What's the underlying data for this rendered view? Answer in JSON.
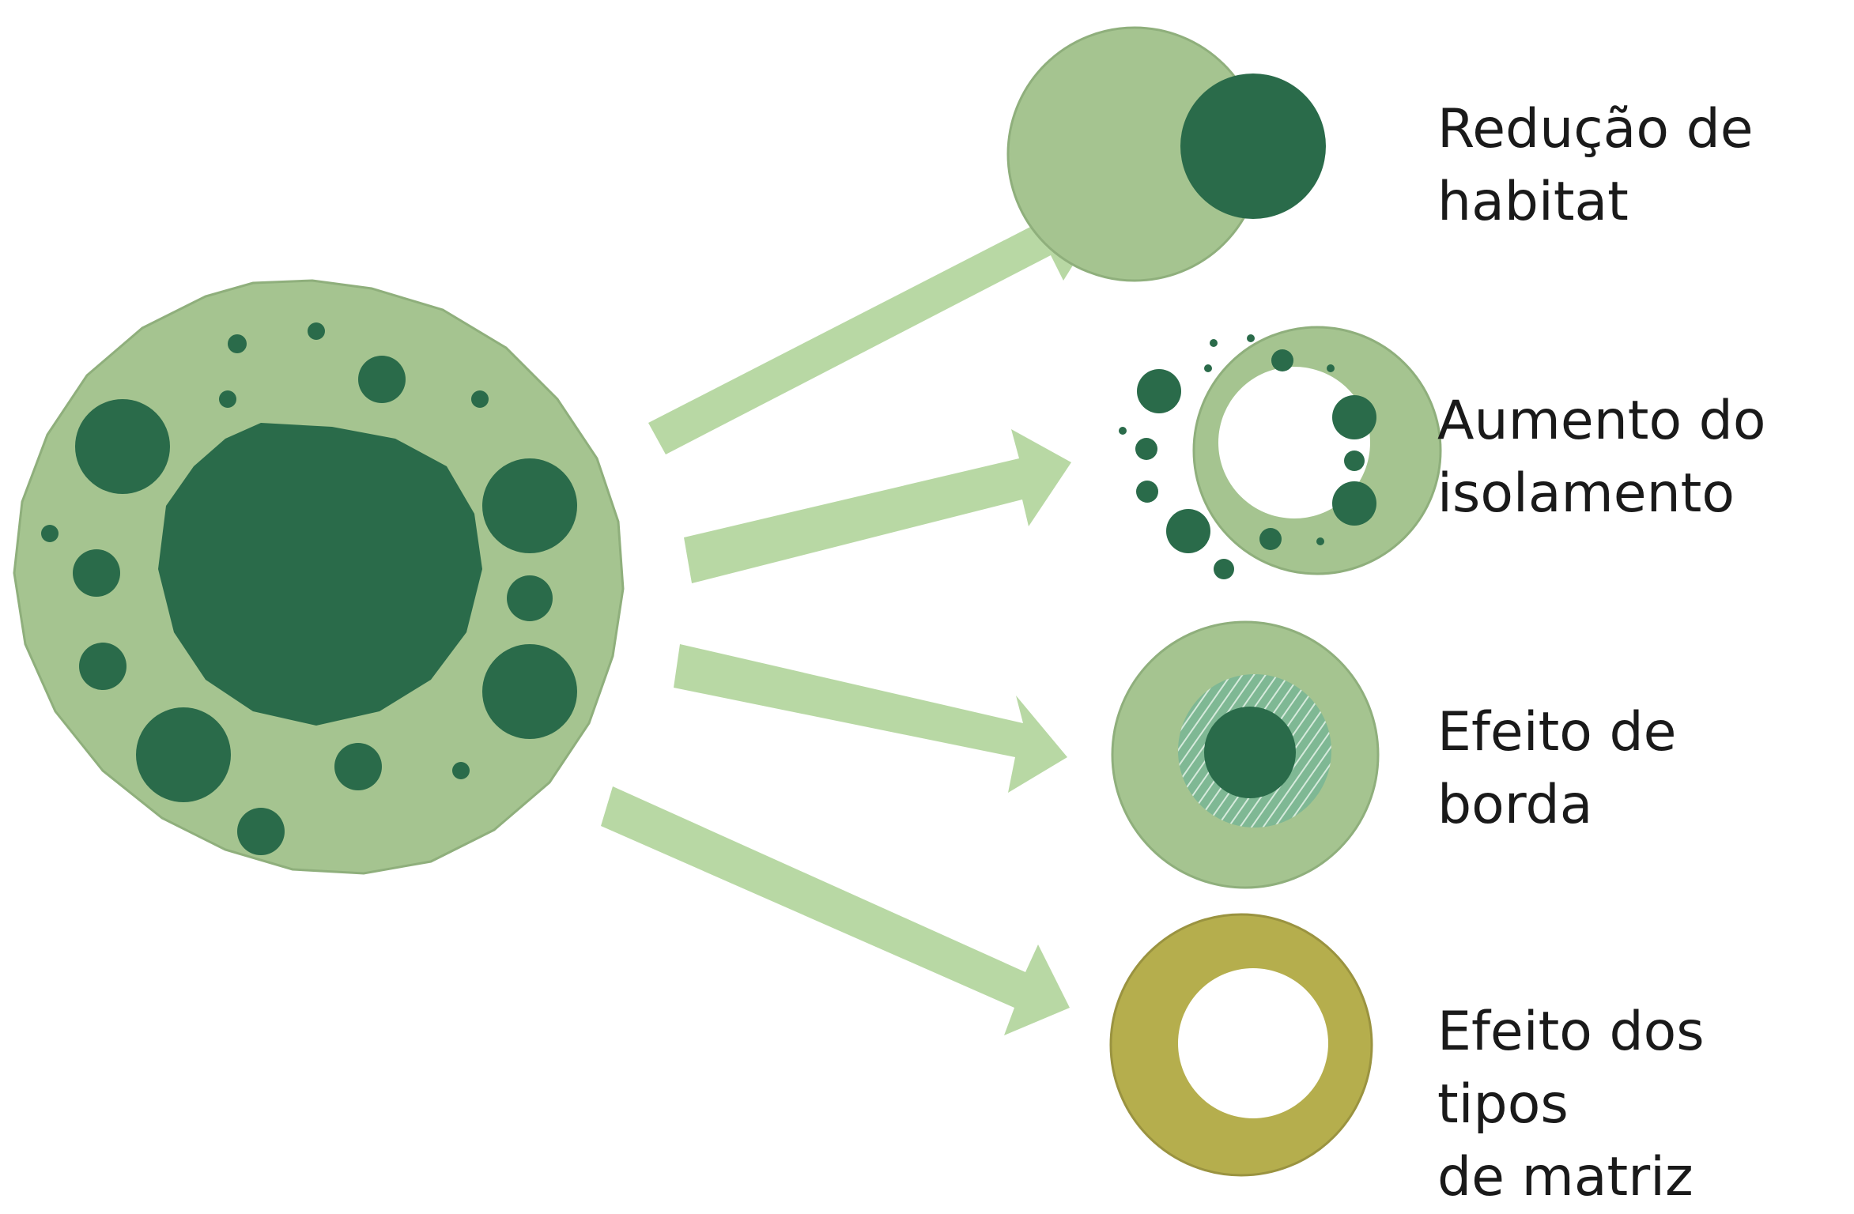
{
  "labels": {
    "habitat_reduction": "Redução de\nhabitat",
    "isolation_increase": "Aumento do\nisolamento",
    "edge_effect": "Efeito de\nborda",
    "matrix_type_effect": "Efeito dos tipos\nde matriz"
  },
  "colors": {
    "landscape": "#a5c490",
    "habitat": "#2a6b4a",
    "arrow": "#b8d8a4",
    "edge_zone": "#6aaa7e",
    "matrix": "#b5ae4d",
    "background": "#ffffff"
  }
}
